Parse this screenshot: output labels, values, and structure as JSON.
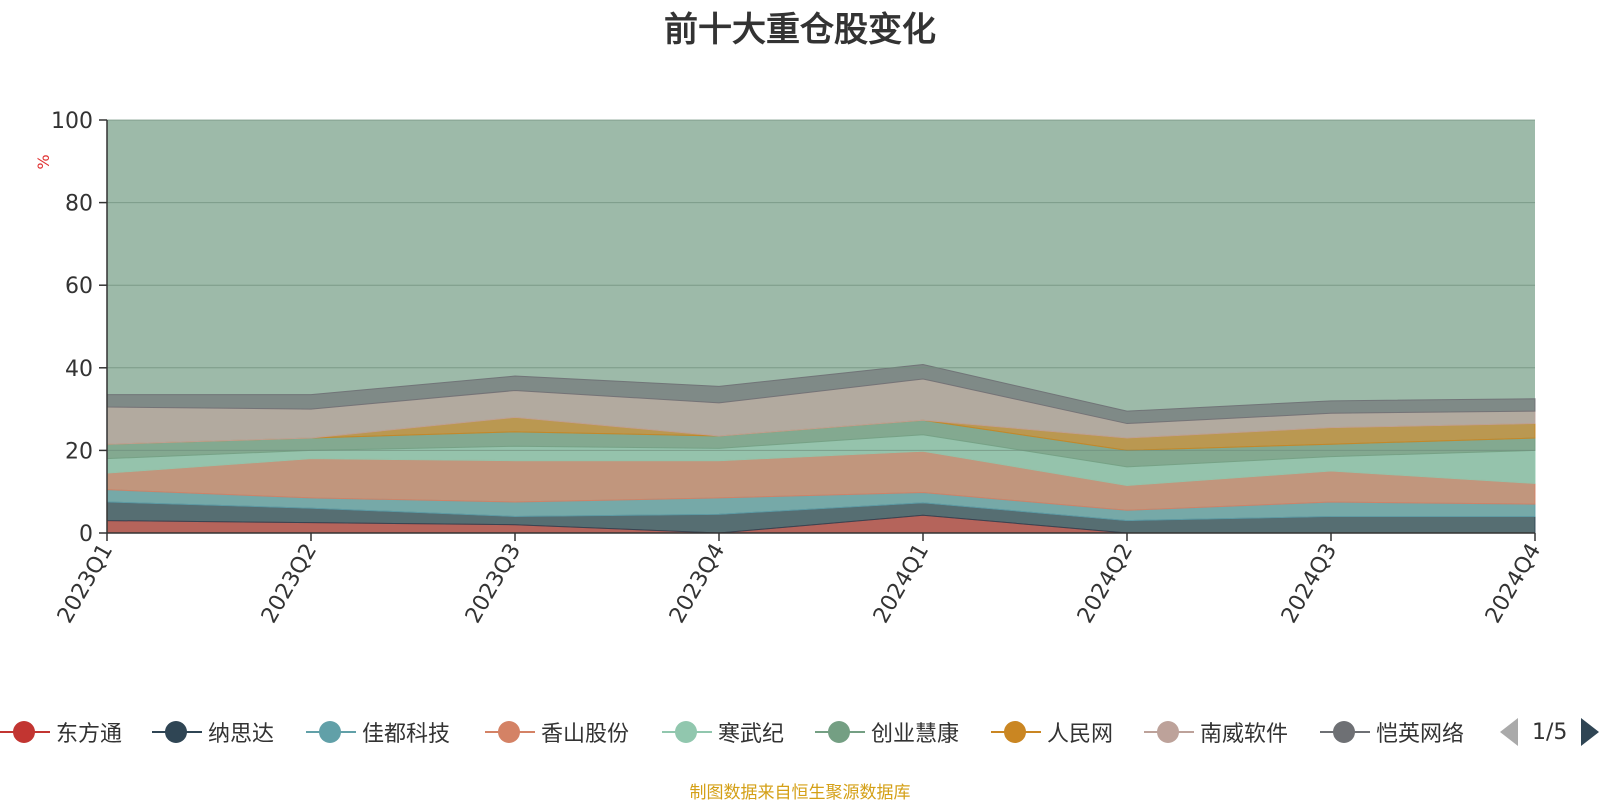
{
  "page": {
    "source_note": "制图数据来自恒生聚源数据库",
    "pager_text": "1/5"
  },
  "chart_data": {
    "type": "area",
    "title": "前十大重仓股变化",
    "ylabel": "%",
    "ylim": [
      0,
      100
    ],
    "yticks": [
      0,
      20,
      40,
      60,
      80,
      100
    ],
    "categories": [
      "2023Q1",
      "2023Q2",
      "2023Q3",
      "2023Q4",
      "2024Q1",
      "2024Q2",
      "2024Q3",
      "2024Q4"
    ],
    "grid": true,
    "legend_position": "bottom",
    "stacked": true,
    "background_series_color": "#9dbaa9",
    "series": [
      {
        "name": "东方通",
        "color": "#c23531",
        "values": [
          3.0,
          2.5,
          2.0,
          0.0,
          4.3,
          0.0,
          0.0,
          0.0
        ]
      },
      {
        "name": "纳思达",
        "color": "#2f4554",
        "values": [
          4.5,
          3.5,
          2.0,
          4.5,
          3.0,
          3.0,
          4.0,
          4.0
        ]
      },
      {
        "name": "佳都科技",
        "color": "#61a0a8",
        "values": [
          3.0,
          2.5,
          3.5,
          4.0,
          2.5,
          2.5,
          3.5,
          3.0
        ]
      },
      {
        "name": "香山股份",
        "color": "#d48265",
        "values": [
          4.0,
          9.5,
          10.0,
          9.0,
          10.0,
          6.0,
          7.5,
          5.0
        ]
      },
      {
        "name": "寒武纪",
        "color": "#91c7ae",
        "values": [
          3.5,
          2.0,
          3.5,
          3.0,
          4.0,
          4.5,
          3.5,
          8.0
        ]
      },
      {
        "name": "创业慧康",
        "color": "#749f83",
        "values": [
          3.5,
          3.0,
          3.5,
          3.0,
          3.5,
          4.0,
          3.0,
          3.0
        ]
      },
      {
        "name": "人民网",
        "color": "#ca8622",
        "values": [
          0.0,
          0.0,
          3.5,
          0.0,
          0.0,
          3.0,
          4.0,
          3.5
        ]
      },
      {
        "name": "南威软件",
        "color": "#bda29a",
        "values": [
          9.0,
          7.0,
          6.5,
          8.0,
          10.0,
          3.5,
          3.5,
          3.0
        ]
      },
      {
        "name": "恺英网络",
        "color": "#6e7074",
        "values": [
          3.0,
          3.5,
          3.5,
          4.0,
          3.5,
          3.0,
          3.0,
          3.0
        ]
      }
    ]
  },
  "legend": {
    "items": [
      {
        "label": "东方通",
        "color": "#c23531"
      },
      {
        "label": "纳思达",
        "color": "#2f4554"
      },
      {
        "label": "佳都科技",
        "color": "#61a0a8"
      },
      {
        "label": "香山股份",
        "color": "#d48265"
      },
      {
        "label": "寒武纪",
        "color": "#91c7ae"
      },
      {
        "label": "创业慧康",
        "color": "#749f83"
      },
      {
        "label": "人民网",
        "color": "#ca8622"
      },
      {
        "label": "南威软件",
        "color": "#bda29a"
      },
      {
        "label": "恺英网络",
        "color": "#6e7074"
      }
    ]
  }
}
